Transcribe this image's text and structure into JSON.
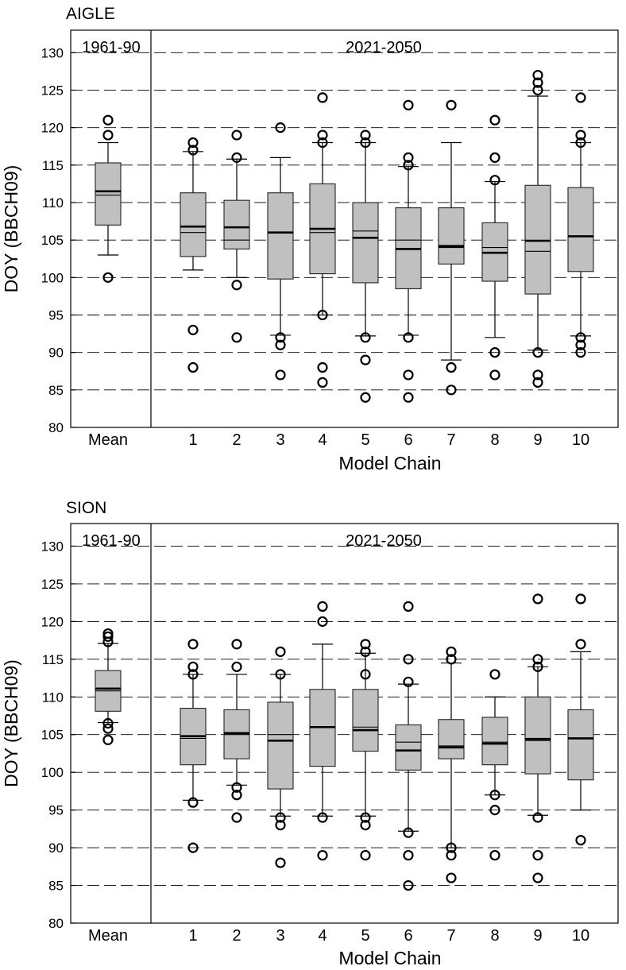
{
  "chart_data": [
    {
      "type": "boxplot",
      "title": "AIGLE",
      "ylabel": "DOY (BBCH09)",
      "xlabel": "Model Chain",
      "ylim": [
        80,
        133
      ],
      "yticks": [
        80,
        85,
        90,
        95,
        100,
        105,
        110,
        115,
        120,
        125,
        130
      ],
      "grid": "horizontal dashed",
      "period_labels": [
        "1961-90",
        "2021-2050"
      ],
      "categories": [
        "Mean",
        "1",
        "2",
        "3",
        "4",
        "5",
        "6",
        "7",
        "8",
        "9",
        "10"
      ],
      "boxes": [
        {
          "category": "Mean",
          "whisker_low": 103,
          "q1": 107,
          "median": 111,
          "mean": 111.5,
          "q3": 115.3,
          "whisker_high": 118,
          "outliers": [
            100,
            119,
            121
          ]
        },
        {
          "category": "1",
          "whisker_low": 101,
          "q1": 102.8,
          "median": 106,
          "mean": 106.8,
          "q3": 111.3,
          "whisker_high": 116.8,
          "outliers": [
            88,
            93,
            117,
            118
          ]
        },
        {
          "category": "2",
          "whisker_low": 100,
          "q1": 103.8,
          "median": 105,
          "mean": 106.7,
          "q3": 110.3,
          "whisker_high": 115.8,
          "outliers": [
            92,
            99,
            116,
            119
          ]
        },
        {
          "category": "3",
          "whisker_low": 92.3,
          "q1": 99.8,
          "median": 106,
          "mean": 106,
          "q3": 111.3,
          "whisker_high": 116,
          "outliers": [
            87,
            91,
            92,
            120
          ]
        },
        {
          "category": "4",
          "whisker_low": 95,
          "q1": 100.5,
          "median": 106,
          "mean": 106.5,
          "q3": 112.5,
          "whisker_high": 118,
          "outliers": [
            86,
            88,
            95,
            118,
            119,
            124
          ]
        },
        {
          "category": "5",
          "whisker_low": 92.2,
          "q1": 99.3,
          "median": 106.2,
          "mean": 105.3,
          "q3": 110,
          "whisker_high": 118,
          "outliers": [
            84,
            89,
            92,
            118,
            119
          ]
        },
        {
          "category": "6",
          "whisker_low": 92.3,
          "q1": 98.5,
          "median": 105,
          "mean": 103.8,
          "q3": 109.3,
          "whisker_high": 114.8,
          "outliers": [
            84,
            87,
            92,
            115,
            116,
            123
          ]
        },
        {
          "category": "7",
          "whisker_low": 89,
          "q1": 101.8,
          "median": 104,
          "mean": 104.2,
          "q3": 109.3,
          "whisker_high": 118,
          "outliers": [
            85,
            88,
            123
          ]
        },
        {
          "category": "8",
          "whisker_low": 92,
          "q1": 99.5,
          "median": 104,
          "mean": 103.3,
          "q3": 107.3,
          "whisker_high": 112.8,
          "outliers": [
            87,
            90,
            113,
            116,
            121
          ]
        },
        {
          "category": "9",
          "whisker_low": 90.3,
          "q1": 97.8,
          "median": 103.5,
          "mean": 104.9,
          "q3": 112.3,
          "whisker_high": 124.2,
          "outliers": [
            86,
            87,
            90,
            125,
            126,
            127
          ]
        },
        {
          "category": "10",
          "whisker_low": 92.2,
          "q1": 100.8,
          "median": 105.5,
          "mean": 105.5,
          "q3": 112,
          "whisker_high": 118,
          "outliers": [
            90,
            91,
            92,
            118,
            119,
            124
          ]
        }
      ]
    },
    {
      "type": "boxplot",
      "title": "SION",
      "ylabel": "DOY (BBCH09)",
      "xlabel": "Model Chain",
      "ylim": [
        80,
        133
      ],
      "yticks": [
        80,
        85,
        90,
        95,
        100,
        105,
        110,
        115,
        120,
        125,
        130
      ],
      "grid": "horizontal dashed",
      "period_labels": [
        "1961-90",
        "2021-2050"
      ],
      "categories": [
        "Mean",
        "1",
        "2",
        "3",
        "4",
        "5",
        "6",
        "7",
        "8",
        "9",
        "10"
      ],
      "boxes": [
        {
          "category": "Mean",
          "whisker_low": 106.6,
          "q1": 108.1,
          "median": 110.8,
          "mean": 111.1,
          "q3": 113.5,
          "whisker_high": 117.1,
          "outliers": [
            104.3,
            105.8,
            106.5,
            117.3,
            118,
            118.4
          ]
        },
        {
          "category": "1",
          "whisker_low": 96.3,
          "q1": 101,
          "median": 104.5,
          "mean": 104.8,
          "q3": 108.5,
          "whisker_high": 113,
          "outliers": [
            90,
            96,
            113,
            114,
            117
          ]
        },
        {
          "category": "2",
          "whisker_low": 98.3,
          "q1": 101.8,
          "median": 105,
          "mean": 105.2,
          "q3": 108.3,
          "whisker_high": 113,
          "outliers": [
            94,
            97,
            98,
            114,
            117
          ]
        },
        {
          "category": "3",
          "whisker_low": 94.2,
          "q1": 97.8,
          "median": 105,
          "mean": 104.2,
          "q3": 109.3,
          "whisker_high": 113,
          "outliers": [
            88,
            93,
            94,
            113,
            116
          ]
        },
        {
          "category": "4",
          "whisker_low": 94.2,
          "q1": 100.8,
          "median": 106,
          "mean": 106,
          "q3": 111,
          "whisker_high": 117,
          "outliers": [
            89,
            94,
            120,
            122
          ]
        },
        {
          "category": "5",
          "whisker_low": 94.2,
          "q1": 102.8,
          "median": 106,
          "mean": 105.6,
          "q3": 111,
          "whisker_high": 115.8,
          "outliers": [
            89,
            93,
            94,
            113,
            116,
            117
          ]
        },
        {
          "category": "6",
          "whisker_low": 92.2,
          "q1": 100.3,
          "median": 104,
          "mean": 102.9,
          "q3": 106.3,
          "whisker_high": 111.7,
          "outliers": [
            85,
            89,
            92,
            112,
            115,
            122
          ]
        },
        {
          "category": "7",
          "whisker_low": 90,
          "q1": 101.8,
          "median": 103.5,
          "mean": 103.3,
          "q3": 107,
          "whisker_high": 114.5,
          "outliers": [
            86,
            89,
            90,
            115,
            116
          ]
        },
        {
          "category": "8",
          "whisker_low": 97,
          "q1": 101,
          "median": 104,
          "mean": 103.8,
          "q3": 107.3,
          "whisker_high": 110,
          "outliers": [
            89,
            95,
            97,
            113
          ]
        },
        {
          "category": "9",
          "whisker_low": 94.3,
          "q1": 99.8,
          "median": 104.5,
          "mean": 104.3,
          "q3": 110,
          "whisker_high": 114,
          "outliers": [
            86,
            89,
            94,
            114,
            115,
            123
          ]
        },
        {
          "category": "10",
          "whisker_low": 95,
          "q1": 99,
          "median": 104.5,
          "mean": 104.5,
          "q3": 108.3,
          "whisker_high": 116,
          "outliers": [
            91,
            117,
            123
          ]
        }
      ]
    }
  ]
}
